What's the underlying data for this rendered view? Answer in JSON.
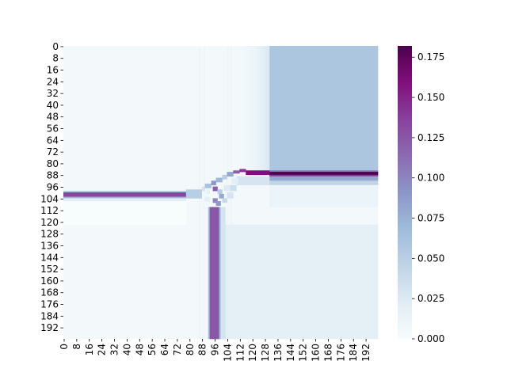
{
  "chart_data": {
    "type": "heatmap",
    "title": "",
    "xlabel": "",
    "ylabel": "",
    "rows": 200,
    "cols": 200,
    "x_ticks": [
      "0",
      "8",
      "16",
      "24",
      "32",
      "40",
      "48",
      "56",
      "64",
      "72",
      "80",
      "88",
      "96",
      "104",
      "112",
      "120",
      "128",
      "136",
      "144",
      "152",
      "160",
      "168",
      "176",
      "184",
      "192"
    ],
    "y_ticks": [
      "0",
      "8",
      "16",
      "24",
      "32",
      "40",
      "48",
      "56",
      "64",
      "72",
      "80",
      "88",
      "96",
      "104",
      "112",
      "120",
      "128",
      "136",
      "144",
      "152",
      "160",
      "168",
      "176",
      "184",
      "192"
    ],
    "colorbar": {
      "colormap": "BuPu",
      "min": 0.0,
      "max": 0.182,
      "ticks": [
        "0.000",
        "0.025",
        "0.050",
        "0.075",
        "0.100",
        "0.125",
        "0.150",
        "0.175"
      ]
    },
    "regions": [
      {
        "desc": "background",
        "value": 0.004
      },
      {
        "desc": "top-right block rows 0-85, cols 131-199",
        "value": 0.058
      },
      {
        "desc": "bottom-right block rows 122-199, cols 101-199",
        "value": 0.018
      },
      {
        "desc": "horizontal band rows 85-88, cols 116-199",
        "value": 0.182
      },
      {
        "desc": "horizontal band rows 100-103, cols 0-78",
        "value": 0.135
      },
      {
        "desc": "vertical band rows 110-199, cols 93-99",
        "value": 0.125
      }
    ]
  },
  "colors": {
    "low": "#f7fcfd",
    "high": "#4d004b"
  }
}
